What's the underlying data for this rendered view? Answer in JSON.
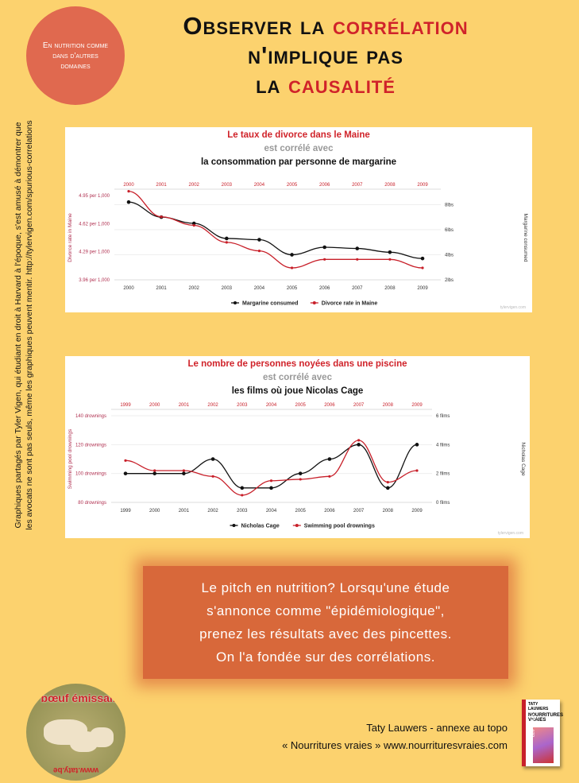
{
  "badge": "En nutrition comme dans d'autres domaines",
  "title": {
    "line1a": "Observer la ",
    "line1b": "corrélation",
    "line2": "n'implique pas",
    "line3a": "la ",
    "line3b": "causalité"
  },
  "side_note": "Graphiques partagés par Tyler Vigen, qui étudiant en droit à Harvard à l'époque, s'est amusé à démontrer que les avocats ne sont pas seuls, même les graphiques peuvent mentir.  http://tylervigen.com/spurious-correlations",
  "pitch": "Le pitch en nutrition? Lorsqu'une étude s'annonce comme \"épidémiologique\", prenez les résultats avec des pincettes. On l'a fondée sur des corrélations.",
  "logo": {
    "text": "le bœuf émissaire",
    "url": "www.taty.be"
  },
  "credit": {
    "line1": "Taty Lauwers - annexe au topo",
    "line2": "« Nourritures vraies »  www.nourrituresvraies.com"
  },
  "book": {
    "series": "LES TOPOS",
    "author": "TATY LAUWERS",
    "title": "NOURRITURES VRAIES"
  },
  "colors": {
    "red": "#c8202a",
    "black": "#111111"
  },
  "chart_data": [
    {
      "type": "line",
      "title": "Le taux de divorce dans le Maine",
      "subtitle": "est corrélé avec",
      "subtitle2": "la consommation par personne de margarine",
      "categories": [
        "2000",
        "2001",
        "2002",
        "2003",
        "2004",
        "2005",
        "2006",
        "2007",
        "2008",
        "2009"
      ],
      "left_axis": {
        "label": "Divorce rate in Maine",
        "ticks": [
          "4.95 per 1,000",
          "4.62 per 1,000",
          "4.29 per 1,000",
          "3.96 per 1,000"
        ],
        "tick_values": [
          4.95,
          4.62,
          4.29,
          3.96
        ],
        "ylim": [
          3.96,
          4.95
        ]
      },
      "right_axis": {
        "label": "Margarine consumed",
        "ticks": [
          "8lbs",
          "6lbs",
          "4lbs",
          "2lbs"
        ],
        "tick_values": [
          8,
          6,
          4,
          2
        ],
        "ylim": [
          2,
          8.72
        ]
      },
      "series": [
        {
          "name": "Margarine consumed",
          "axis": "right",
          "color": "#111111",
          "values": [
            8.2,
            7.0,
            6.5,
            5.3,
            5.2,
            4.0,
            4.6,
            4.5,
            4.2,
            3.7
          ]
        },
        {
          "name": "Divorce rate in Maine",
          "axis": "left",
          "color": "#c8202a",
          "values": [
            5.0,
            4.7,
            4.6,
            4.4,
            4.3,
            4.1,
            4.2,
            4.2,
            4.2,
            4.1
          ]
        }
      ],
      "source": "tylervigen.com",
      "legend": "bottom"
    },
    {
      "type": "line",
      "title": "Le nombre de personnes noyées dans une piscine",
      "subtitle": "est corrélé avec",
      "subtitle2": "les films où joue Nicolas Cage",
      "categories": [
        "1999",
        "2000",
        "2001",
        "2002",
        "2003",
        "2004",
        "2005",
        "2006",
        "2007",
        "2008",
        "2009"
      ],
      "left_axis": {
        "label": "Swimming pool drownings",
        "ticks": [
          "140 drownings",
          "120 drownings",
          "100 drownings",
          "80 drownings"
        ],
        "tick_values": [
          140,
          120,
          100,
          80
        ],
        "ylim": [
          80,
          140
        ]
      },
      "right_axis": {
        "label": "Nicholas Cage",
        "ticks": [
          "6 films",
          "4 films",
          "2 films",
          "0 films"
        ],
        "tick_values": [
          6,
          4,
          2,
          0
        ],
        "ylim": [
          0,
          6
        ]
      },
      "series": [
        {
          "name": "Nicholas Cage",
          "axis": "right",
          "color": "#111111",
          "values": [
            2,
            2,
            2,
            3,
            1,
            1,
            2,
            3,
            4,
            1,
            4
          ]
        },
        {
          "name": "Swimming pool drownings",
          "axis": "left",
          "color": "#c8202a",
          "values": [
            109,
            102,
            102,
            98,
            85,
            95,
            96,
            98,
            123,
            94,
            102
          ]
        }
      ],
      "source": "tylervigen.com",
      "legend": "bottom"
    }
  ]
}
